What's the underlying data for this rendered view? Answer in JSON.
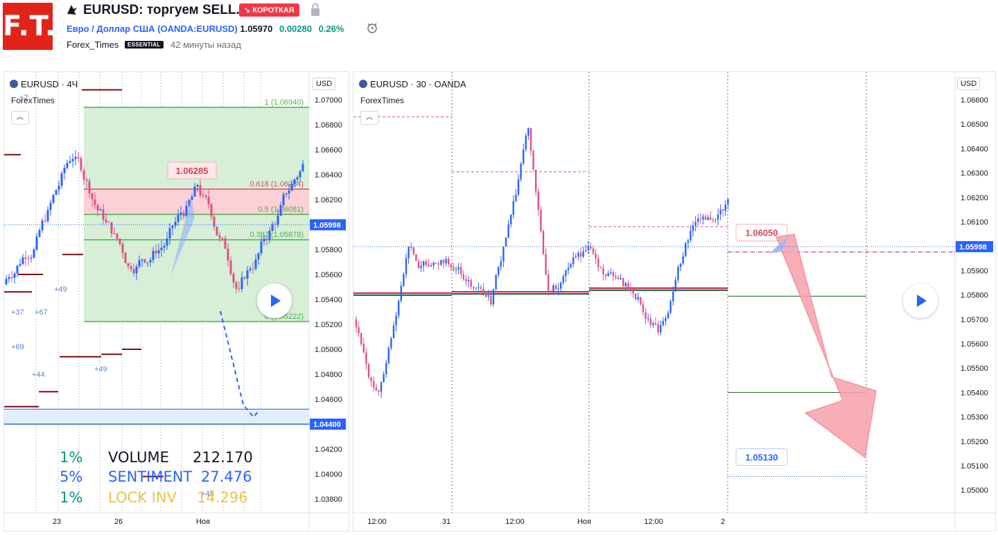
{
  "header": {
    "logo_text": "F.T.",
    "title": "EURUSD: торгуем SELL.",
    "badge": "↘ КОРОТКАЯ",
    "instrument": "Евро / Доллар США",
    "ticker": "(OANDA:EURUSD)",
    "price": "1.05970",
    "change": "0.00280",
    "change_pct": "0.26%",
    "author": "Forex_Times",
    "author_badge": "ESSENTIAL",
    "time_ago": "42 минуты назад",
    "icons": [
      "idea-icon",
      "lock-icon",
      "alarm-icon"
    ]
  },
  "left_chart": {
    "symbol": "EURUSD · 4Ч",
    "label": "ForexTimes",
    "currency": "USD",
    "price_ticks": [
      "1.07000",
      "1.06800",
      "1.06600",
      "1.06400",
      "1.06200",
      "1.06000",
      "1.05800",
      "1.05600",
      "1.05400",
      "1.05200",
      "1.05000",
      "1.04800",
      "1.04600",
      "1.04400",
      "1.04200",
      "1.04000",
      "1.03800"
    ],
    "current_price": "1.05998",
    "support_price": "1.04400",
    "time_ticks": [
      "23",
      "26",
      "Ноя"
    ],
    "fib_levels": [
      {
        "label": "1 (1.06940)",
        "value": 1.0694
      },
      {
        "label": "0.618 (1.06284)",
        "value": 1.06284
      },
      {
        "label": "0.5 (1.06081)",
        "value": 1.06081
      },
      {
        "label": "0.382 (1.05878)",
        "value": 1.05878
      },
      {
        "label": "0 (1.05222)",
        "value": 1.05222
      }
    ],
    "callout": "1.06285",
    "markers": [
      "+49",
      "+67",
      "+69",
      "+44",
      "+49",
      "+37",
      "+45",
      "+2"
    ],
    "stats": [
      {
        "pct": "1%",
        "name": "VOLUME",
        "value": "212.170",
        "pct_color": "#089981",
        "color": "#131722"
      },
      {
        "pct": "5%",
        "name": "SENTIMENT",
        "value": "27.476",
        "pct_color": "#2962ff",
        "color": "#2962ff"
      },
      {
        "pct": "1%",
        "name": "LOCK INV",
        "value": "14.296",
        "pct_color": "#089981",
        "color": "#e8c547"
      }
    ],
    "colors": {
      "up": "#2962ff",
      "down": "#e04f86",
      "fib_fill": "#d6efd6",
      "fib_line": "#4caf50",
      "zone_red": "#fbd0d6",
      "level_line": "#7b0a0a"
    }
  },
  "right_chart": {
    "symbol": "EURUSD · 30 · OANDA",
    "label": "ForexTimes",
    "currency": "USD",
    "price_ticks": [
      "1.06600",
      "1.06500",
      "1.06400",
      "1.06300",
      "1.06200",
      "1.06100",
      "1.06000",
      "1.05900",
      "1.05800",
      "1.05700",
      "1.05600",
      "1.05500",
      "1.05400",
      "1.05300",
      "1.05200",
      "1.05100",
      "1.05000"
    ],
    "current_price": "1.05998",
    "time_ticks": [
      "12:00",
      "31",
      "12:00",
      "Ноя",
      "12:00",
      "2"
    ],
    "target_high": "1.06050",
    "target_low": "1.05130",
    "colors": {
      "up": "#2962ff",
      "down": "#e04f86",
      "arrow": "#f7a1ab",
      "level": "#1b5e20"
    }
  }
}
